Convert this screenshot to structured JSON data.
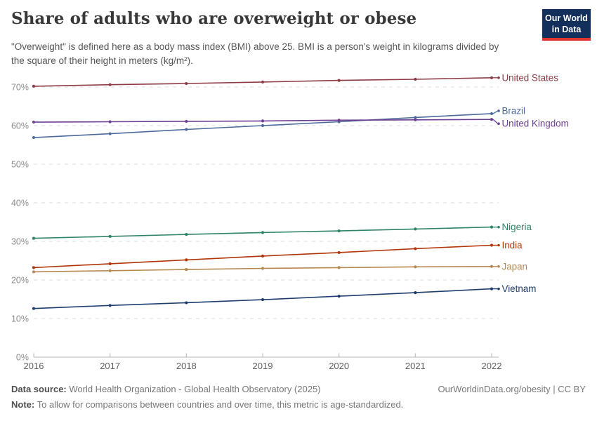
{
  "header": {
    "title": "Share of adults who are overweight or obese",
    "subtitle": "\"Overweight\" is defined here as a body mass index (BMI) above 25. BMI is a person's weight in kilograms divided by the square of their height in meters (kg/m²).",
    "logo": {
      "line1": "Our World",
      "line2": "in Data",
      "bg_color": "#12305B",
      "stripe_color": "#E0342C"
    }
  },
  "chart_data": {
    "type": "line",
    "x": [
      2016,
      2017,
      2018,
      2019,
      2020,
      2021,
      2022
    ],
    "unit": "%",
    "ylim": [
      0,
      75
    ],
    "yticks": [
      0,
      10,
      20,
      30,
      40,
      50,
      60,
      70
    ],
    "grid": "horizontal-dashed",
    "legend_position": "right-end-labels",
    "axis_color": "#b5b5b5",
    "grid_color": "#dcdcdc",
    "ytick_label_color": "#8c8c8c",
    "xtick_label_color": "#5f5f5f",
    "series": [
      {
        "name": "United States",
        "color": "#8E3A46",
        "values": [
          70.2,
          70.6,
          70.9,
          71.3,
          71.7,
          72.0,
          72.4
        ],
        "label_offset": 0
      },
      {
        "name": "Brazil",
        "color": "#4C6A9C",
        "values": [
          56.9,
          57.9,
          59.0,
          60.0,
          61.0,
          62.1,
          63.1
        ],
        "label_offset": -4
      },
      {
        "name": "United Kingdom",
        "color": "#6D3E91",
        "values": [
          60.9,
          61.0,
          61.1,
          61.2,
          61.4,
          61.5,
          61.6
        ],
        "label_offset": 6
      },
      {
        "name": "Nigeria",
        "color": "#2C8465",
        "values": [
          30.8,
          31.3,
          31.8,
          32.3,
          32.7,
          33.2,
          33.7
        ],
        "label_offset": 0
      },
      {
        "name": "India",
        "color": "#B13507",
        "values": [
          23.2,
          24.2,
          25.2,
          26.2,
          27.1,
          28.1,
          29.0
        ],
        "label_offset": 0
      },
      {
        "name": "Japan",
        "color": "#B5884F",
        "values": [
          22.1,
          22.4,
          22.7,
          23.0,
          23.2,
          23.4,
          23.5
        ],
        "label_offset": 0
      },
      {
        "name": "Vietnam",
        "color": "#1D3D6D",
        "values": [
          12.6,
          13.4,
          14.1,
          14.9,
          15.8,
          16.7,
          17.7
        ],
        "label_offset": 0
      }
    ]
  },
  "footer": {
    "datasource_label": "Data source:",
    "datasource_value": " World Health Organization - Global Health Observatory (2025)",
    "note_label": "Note:",
    "note_value": " To allow for comparisons between countries and over time, this metric is age-standardized.",
    "right": "OurWorldinData.org/obesity | CC BY"
  }
}
